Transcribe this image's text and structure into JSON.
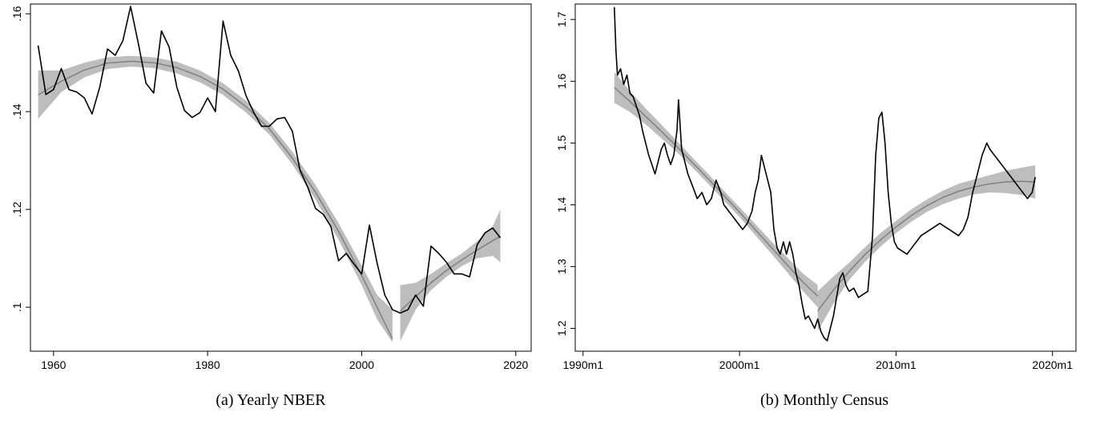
{
  "captions": [
    "(a) Yearly NBER",
    "(b) Monthly Census"
  ],
  "colors": {
    "line": "#000000",
    "fit": "#808080",
    "band": "#bdbdbd"
  },
  "chart_data": [
    {
      "type": "line",
      "title": "",
      "xlabel": "",
      "ylabel": "",
      "xlim": [
        1957,
        2022
      ],
      "ylim": [
        0.091,
        0.162
      ],
      "xticks": [
        1960,
        1980,
        2000,
        2020
      ],
      "xtick_labels": [
        "1960",
        "1980",
        "2000",
        "2020"
      ],
      "yticks": [
        0.1,
        0.12,
        0.14,
        0.16
      ],
      "ytick_labels": [
        ".1",
        ".12",
        ".14",
        ".16"
      ],
      "grid": false,
      "series": [
        {
          "role": "observed",
          "x": [
            1958,
            1959,
            1960,
            1961,
            1962,
            1963,
            1964,
            1965,
            1966,
            1967,
            1968,
            1969,
            1970,
            1971,
            1972,
            1973,
            1974,
            1975,
            1976,
            1977,
            1978,
            1979,
            1980,
            1981,
            1982,
            1983,
            1984,
            1985,
            1986,
            1987,
            1988,
            1989,
            1990,
            1991,
            1992,
            1993,
            1994,
            1995,
            1996,
            1997,
            1998,
            1999,
            2000,
            2001,
            2002,
            2003,
            2004,
            2005,
            2006,
            2007,
            2008,
            2009,
            2010,
            2011,
            2012,
            2013,
            2014,
            2015,
            2016,
            2017,
            2018
          ],
          "y": [
            0.1535,
            0.1435,
            0.1445,
            0.1488,
            0.1445,
            0.144,
            0.1428,
            0.1395,
            0.145,
            0.1528,
            0.1515,
            0.1545,
            0.1615,
            0.154,
            0.1458,
            0.1438,
            0.1565,
            0.1532,
            0.145,
            0.1402,
            0.1388,
            0.1398,
            0.1428,
            0.14,
            0.1585,
            0.1515,
            0.1483,
            0.1432,
            0.1398,
            0.137,
            0.137,
            0.1385,
            0.1388,
            0.136,
            0.128,
            0.1245,
            0.1202,
            0.119,
            0.1165,
            0.1095,
            0.111,
            0.1088,
            0.1068,
            0.1168,
            0.109,
            0.1025,
            0.0995,
            0.0988,
            0.0995,
            0.1025,
            0.1002,
            0.1125,
            0.111,
            0.1092,
            0.1068,
            0.1068,
            0.1062,
            0.1128,
            0.1152,
            0.1162,
            0.1142
          ]
        },
        {
          "role": "fit",
          "segments": [
            {
              "x": [
                1958,
                1961,
                1964,
                1967,
                1970,
                1973,
                1976,
                1979,
                1982,
                1985,
                1988,
                1991,
                1994,
                1997,
                2000,
                2002,
                2004
              ],
              "y": [
                0.1434,
                0.1462,
                0.1485,
                0.1499,
                0.1503,
                0.15,
                0.149,
                0.1472,
                0.1446,
                0.141,
                0.1365,
                0.1305,
                0.1235,
                0.1155,
                0.1065,
                0.1,
                0.0935
              ],
              "lower": [
                0.1385,
                0.144,
                0.147,
                0.1487,
                0.1492,
                0.1489,
                0.1478,
                0.146,
                0.1434,
                0.1398,
                0.1353,
                0.1292,
                0.122,
                0.1138,
                0.1045,
                0.0975,
                0.0928
              ],
              "upper": [
                0.1484,
                0.1484,
                0.15,
                0.1511,
                0.1514,
                0.1511,
                0.1502,
                0.1484,
                0.1458,
                0.1422,
                0.1377,
                0.1318,
                0.125,
                0.1172,
                0.1085,
                0.1025,
                0.0995
              ]
            },
            {
              "x": [
                2005,
                2007,
                2009,
                2011,
                2013,
                2015,
                2017,
                2018
              ],
              "y": [
                0.0992,
                0.1022,
                0.105,
                0.1075,
                0.1097,
                0.1117,
                0.1136,
                0.1145
              ],
              "lower": [
                0.093,
                0.0995,
                0.1035,
                0.1062,
                0.1084,
                0.11,
                0.1105,
                0.1092
              ],
              "upper": [
                0.1045,
                0.105,
                0.1068,
                0.109,
                0.111,
                0.1135,
                0.1165,
                0.12
              ]
            }
          ]
        }
      ]
    },
    {
      "type": "line",
      "title": "",
      "xlabel": "",
      "ylabel": "",
      "xlim": [
        1989.5,
        2021.5
      ],
      "ylim": [
        1.163,
        1.725
      ],
      "xticks": [
        1990,
        2000,
        2010,
        2020
      ],
      "xtick_labels": [
        "1990m1",
        "2000m1",
        "2010m1",
        "2020m1"
      ],
      "yticks": [
        1.2,
        1.3,
        1.4,
        1.5,
        1.6,
        1.7
      ],
      "ytick_labels": [
        "1.2",
        "1.3",
        "1.4",
        "1.5",
        "1.6",
        "1.7"
      ],
      "grid": false,
      "series": [
        {
          "role": "observed",
          "x": [
            1992.0,
            1992.1,
            1992.2,
            1992.4,
            1992.6,
            1992.8,
            1993.0,
            1993.2,
            1993.4,
            1993.6,
            1993.8,
            1994.0,
            1994.2,
            1994.4,
            1994.6,
            1994.8,
            1995.0,
            1995.2,
            1995.4,
            1995.6,
            1995.8,
            1996.0,
            1996.1,
            1996.3,
            1996.5,
            1996.7,
            1997.0,
            1997.3,
            1997.6,
            1997.9,
            1998.2,
            1998.5,
            1998.8,
            1999.0,
            1999.3,
            1999.6,
            1999.9,
            2000.2,
            2000.5,
            2000.8,
            2001.0,
            2001.2,
            2001.4,
            2001.6,
            2001.8,
            2002.0,
            2002.2,
            2002.4,
            2002.6,
            2002.8,
            2003.0,
            2003.2,
            2003.4,
            2003.6,
            2003.8,
            2004.0,
            2004.2,
            2004.4,
            2004.6,
            2004.8,
            2005.0,
            2005.2,
            2005.4,
            2005.6,
            2005.8,
            2006.0,
            2006.2,
            2006.4,
            2006.6,
            2006.8,
            2007.0,
            2007.3,
            2007.6,
            2007.9,
            2008.2,
            2008.5,
            2008.7,
            2008.9,
            2009.1,
            2009.3,
            2009.5,
            2009.7,
            2009.9,
            2010.1,
            2010.4,
            2010.7,
            2011.0,
            2011.3,
            2011.6,
            2011.9,
            2012.2,
            2012.5,
            2012.8,
            2013.1,
            2013.4,
            2013.7,
            2014.0,
            2014.3,
            2014.6,
            2014.9,
            2015.2,
            2015.5,
            2015.8,
            2016.0,
            2016.3,
            2016.6,
            2016.9,
            2017.2,
            2017.5,
            2017.8,
            2018.1,
            2018.4,
            2018.7,
            2018.9
          ],
          "y": [
            1.72,
            1.65,
            1.61,
            1.62,
            1.595,
            1.61,
            1.58,
            1.575,
            1.56,
            1.545,
            1.52,
            1.5,
            1.48,
            1.465,
            1.45,
            1.47,
            1.49,
            1.5,
            1.48,
            1.465,
            1.48,
            1.52,
            1.57,
            1.49,
            1.47,
            1.45,
            1.43,
            1.41,
            1.42,
            1.4,
            1.41,
            1.44,
            1.42,
            1.4,
            1.39,
            1.38,
            1.37,
            1.36,
            1.37,
            1.39,
            1.42,
            1.44,
            1.48,
            1.46,
            1.44,
            1.42,
            1.36,
            1.33,
            1.32,
            1.34,
            1.32,
            1.34,
            1.32,
            1.29,
            1.27,
            1.24,
            1.215,
            1.22,
            1.21,
            1.2,
            1.215,
            1.195,
            1.185,
            1.18,
            1.2,
            1.22,
            1.25,
            1.28,
            1.29,
            1.27,
            1.26,
            1.265,
            1.25,
            1.255,
            1.26,
            1.35,
            1.48,
            1.54,
            1.55,
            1.5,
            1.42,
            1.37,
            1.34,
            1.33,
            1.325,
            1.32,
            1.33,
            1.34,
            1.35,
            1.355,
            1.36,
            1.365,
            1.37,
            1.365,
            1.36,
            1.355,
            1.35,
            1.36,
            1.38,
            1.42,
            1.45,
            1.48,
            1.5,
            1.49,
            1.48,
            1.47,
            1.46,
            1.45,
            1.44,
            1.43,
            1.42,
            1.41,
            1.42,
            1.445
          ]
        },
        {
          "role": "fit",
          "segments": [
            {
              "x": [
                1992.0,
                1993.0,
                1994.0,
                1995.0,
                1996.0,
                1997.0,
                1998.0,
                1999.0,
                2000.0,
                2001.0,
                2002.0,
                2003.0,
                2004.0,
                2005.0
              ],
              "y": [
                1.59,
                1.567,
                1.543,
                1.519,
                1.494,
                1.468,
                1.442,
                1.415,
                1.388,
                1.36,
                1.332,
                1.304,
                1.276,
                1.252
              ],
              "lower": [
                1.565,
                1.55,
                1.53,
                1.508,
                1.485,
                1.46,
                1.434,
                1.407,
                1.38,
                1.351,
                1.322,
                1.292,
                1.262,
                1.234
              ],
              "upper": [
                1.615,
                1.584,
                1.556,
                1.53,
                1.503,
                1.476,
                1.45,
                1.423,
                1.396,
                1.369,
                1.342,
                1.316,
                1.29,
                1.27
              ]
            },
            {
              "x": [
                2005.0,
                2006.0,
                2007.0,
                2008.0,
                2009.0,
                2010.0,
                2011.0,
                2012.0,
                2013.0,
                2014.0,
                2015.0,
                2016.0,
                2017.0,
                2018.0,
                2018.9
              ],
              "y": [
                1.228,
                1.262,
                1.292,
                1.319,
                1.343,
                1.364,
                1.383,
                1.399,
                1.412,
                1.422,
                1.429,
                1.434,
                1.437,
                1.438,
                1.437
              ],
              "lower": [
                1.195,
                1.24,
                1.278,
                1.307,
                1.332,
                1.354,
                1.373,
                1.389,
                1.401,
                1.41,
                1.417,
                1.42,
                1.419,
                1.416,
                1.41
              ],
              "upper": [
                1.26,
                1.284,
                1.306,
                1.331,
                1.354,
                1.374,
                1.393,
                1.409,
                1.423,
                1.434,
                1.441,
                1.448,
                1.455,
                1.46,
                1.464
              ]
            }
          ]
        }
      ]
    }
  ]
}
